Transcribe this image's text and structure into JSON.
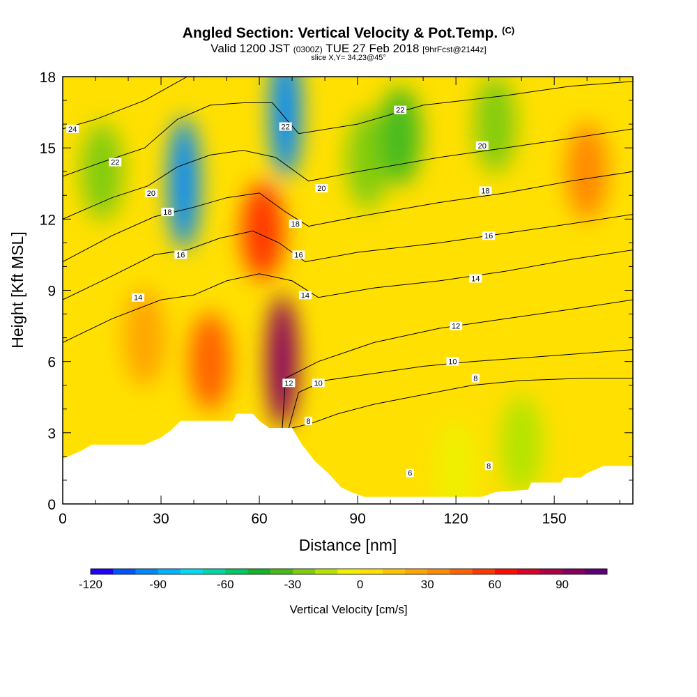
{
  "title": {
    "main": "Angled Section: Vertical Velocity & Pot.Temp.",
    "unit": "(C)",
    "valid_prefix": "Valid 1200 JST",
    "valid_utc": "(0300Z)",
    "valid_date": "TUE 27 Feb 2018",
    "forecast": "[9hrFcst@2144z]",
    "slice": "slice X,Y= 34,23@45°"
  },
  "chart_data": {
    "type": "heatmap",
    "xlabel": "Distance [nm]",
    "ylabel": "Height [Kft MSL]",
    "xlim": [
      0,
      174
    ],
    "ylim": [
      0,
      18
    ],
    "x_ticks": [
      0,
      30,
      60,
      90,
      120,
      150
    ],
    "y_ticks": [
      0,
      3,
      6,
      9,
      12,
      15,
      18
    ],
    "colorbar": {
      "label": "Vertical Velocity [cm/s]",
      "ticks": [
        -120,
        -90,
        -60,
        -30,
        0,
        30,
        60,
        90
      ],
      "range": [
        -120,
        110
      ],
      "colors": [
        "#1e00ff",
        "#0055ff",
        "#0088ff",
        "#00b4ff",
        "#00dcf0",
        "#00d8a8",
        "#00c864",
        "#16b228",
        "#46bb1a",
        "#82cc10",
        "#b4e400",
        "#f0f000",
        "#ffe000",
        "#ffc400",
        "#ffa600",
        "#ff8a00",
        "#ff6400",
        "#ff3800",
        "#ff0c00",
        "#dc0028",
        "#b00046",
        "#88005e",
        "#600078"
      ]
    },
    "terrain_kft": [
      [
        0,
        1.9
      ],
      [
        5,
        2.2
      ],
      [
        9,
        2.5
      ],
      [
        14,
        2.5
      ],
      [
        25,
        2.5
      ],
      [
        30,
        2.8
      ],
      [
        33,
        3.1
      ],
      [
        36,
        3.5
      ],
      [
        40,
        3.5
      ],
      [
        47,
        3.5
      ],
      [
        52,
        3.5
      ],
      [
        53,
        3.8
      ],
      [
        58,
        3.8
      ],
      [
        60,
        3.5
      ],
      [
        63,
        3.2
      ],
      [
        70,
        3.2
      ],
      [
        73,
        2.5
      ],
      [
        77,
        1.8
      ],
      [
        81,
        1.3
      ],
      [
        85,
        0.7
      ],
      [
        88,
        0.5
      ],
      [
        92,
        0.3
      ],
      [
        128,
        0.3
      ],
      [
        132,
        0.5
      ],
      [
        142,
        0.6
      ],
      [
        143,
        0.9
      ],
      [
        152,
        0.9
      ],
      [
        153,
        1.1
      ],
      [
        158,
        1.1
      ],
      [
        160,
        1.3
      ],
      [
        165,
        1.6
      ],
      [
        174,
        1.6
      ]
    ],
    "velocity_features": [
      {
        "x": 37,
        "z": 13.5,
        "value": -100
      },
      {
        "x": 68,
        "z": 16.5,
        "value": -100
      },
      {
        "x": 61,
        "z": 11.5,
        "value": 55
      },
      {
        "x": 67,
        "z": 6,
        "value": 90
      },
      {
        "x": 45,
        "z": 6,
        "value": 45
      },
      {
        "x": 12,
        "z": 14,
        "value": -30
      },
      {
        "x": 93,
        "z": 14.5,
        "value": -30
      },
      {
        "x": 103,
        "z": 15.5,
        "value": -35
      },
      {
        "x": 132,
        "z": 16,
        "value": -30
      },
      {
        "x": 160,
        "z": 14,
        "value": 30
      },
      {
        "x": 25,
        "z": 7,
        "value": 20
      },
      {
        "x": 120,
        "z": 1.5,
        "value": -5
      },
      {
        "x": 140,
        "z": 2.5,
        "value": -15
      }
    ],
    "theta_contour_labels": [
      {
        "text": "24",
        "x": 3,
        "z": 15.8
      },
      {
        "text": "22",
        "x": 16,
        "z": 14.4
      },
      {
        "text": "20",
        "x": 27,
        "z": 13.1
      },
      {
        "text": "18",
        "x": 32,
        "z": 12.3
      },
      {
        "text": "16",
        "x": 36,
        "z": 10.5
      },
      {
        "text": "14",
        "x": 23,
        "z": 8.7
      },
      {
        "text": "22",
        "x": 68,
        "z": 15.9
      },
      {
        "text": "20",
        "x": 79,
        "z": 13.3
      },
      {
        "text": "18",
        "x": 71,
        "z": 11.8
      },
      {
        "text": "16",
        "x": 72,
        "z": 10.5
      },
      {
        "text": "14",
        "x": 74,
        "z": 8.8
      },
      {
        "text": "12",
        "x": 69,
        "z": 5.1
      },
      {
        "text": "10",
        "x": 78,
        "z": 5.1
      },
      {
        "text": "8",
        "x": 75,
        "z": 3.5
      },
      {
        "text": "6",
        "x": 106,
        "z": 1.3
      },
      {
        "text": "8",
        "x": 130,
        "z": 1.6
      },
      {
        "text": "22",
        "x": 103,
        "z": 16.6
      },
      {
        "text": "20",
        "x": 128,
        "z": 15.1
      },
      {
        "text": "18",
        "x": 129,
        "z": 13.2
      },
      {
        "text": "16",
        "x": 130,
        "z": 11.3
      },
      {
        "text": "14",
        "x": 126,
        "z": 9.5
      },
      {
        "text": "12",
        "x": 120,
        "z": 7.5
      },
      {
        "text": "10",
        "x": 119,
        "z": 6.0
      },
      {
        "text": "8",
        "x": 126,
        "z": 5.3
      }
    ],
    "theta_contours": [
      {
        "value": 8,
        "points": [
          [
            70,
            3.2
          ],
          [
            76,
            3.4
          ],
          [
            84,
            3.8
          ],
          [
            95,
            4.2
          ],
          [
            110,
            4.6
          ],
          [
            125,
            5.0
          ],
          [
            140,
            5.2
          ],
          [
            160,
            5.3
          ],
          [
            174,
            5.3
          ]
        ]
      },
      {
        "value": 10,
        "points": [
          [
            69,
            3.2
          ],
          [
            72,
            4.7
          ],
          [
            80,
            5.2
          ],
          [
            95,
            5.5
          ],
          [
            110,
            5.8
          ],
          [
            125,
            6.0
          ],
          [
            145,
            6.2
          ],
          [
            174,
            6.5
          ]
        ]
      },
      {
        "value": 12,
        "points": [
          [
            67,
            3.2
          ],
          [
            68,
            5.3
          ],
          [
            78,
            6.0
          ],
          [
            95,
            6.8
          ],
          [
            115,
            7.4
          ],
          [
            135,
            7.8
          ],
          [
            155,
            8.2
          ],
          [
            174,
            8.6
          ]
        ]
      },
      {
        "value": 14,
        "points": [
          [
            0,
            6.8
          ],
          [
            15,
            7.8
          ],
          [
            30,
            8.6
          ],
          [
            40,
            8.8
          ],
          [
            50,
            9.4
          ],
          [
            60,
            9.7
          ],
          [
            70,
            9.4
          ],
          [
            78,
            8.7
          ],
          [
            95,
            9.1
          ],
          [
            115,
            9.4
          ],
          [
            135,
            9.8
          ],
          [
            155,
            10.3
          ],
          [
            174,
            10.7
          ]
        ]
      },
      {
        "value": 16,
        "points": [
          [
            0,
            8.6
          ],
          [
            15,
            9.6
          ],
          [
            28,
            10.5
          ],
          [
            38,
            10.7
          ],
          [
            48,
            11.2
          ],
          [
            58,
            11.5
          ],
          [
            66,
            11.0
          ],
          [
            74,
            10.2
          ],
          [
            90,
            10.6
          ],
          [
            115,
            11.0
          ],
          [
            135,
            11.4
          ],
          [
            155,
            11.8
          ],
          [
            174,
            12.2
          ]
        ]
      },
      {
        "value": 18,
        "points": [
          [
            0,
            10.2
          ],
          [
            15,
            11.3
          ],
          [
            28,
            12.1
          ],
          [
            40,
            12.5
          ],
          [
            50,
            12.9
          ],
          [
            60,
            13.1
          ],
          [
            68,
            12.3
          ],
          [
            75,
            11.7
          ],
          [
            90,
            12.1
          ],
          [
            115,
            12.7
          ],
          [
            135,
            13.1
          ],
          [
            155,
            13.6
          ],
          [
            174,
            14.0
          ]
        ]
      },
      {
        "value": 20,
        "points": [
          [
            0,
            12.0
          ],
          [
            15,
            12.9
          ],
          [
            26,
            13.4
          ],
          [
            35,
            14.2
          ],
          [
            45,
            14.7
          ],
          [
            55,
            14.9
          ],
          [
            65,
            14.6
          ],
          [
            75,
            13.6
          ],
          [
            90,
            14.0
          ],
          [
            115,
            14.6
          ],
          [
            135,
            15.0
          ],
          [
            155,
            15.4
          ],
          [
            174,
            15.8
          ]
        ]
      },
      {
        "value": 22,
        "points": [
          [
            0,
            13.8
          ],
          [
            12,
            14.4
          ],
          [
            25,
            15.0
          ],
          [
            35,
            16.2
          ],
          [
            45,
            16.8
          ],
          [
            55,
            16.9
          ],
          [
            64,
            16.9
          ],
          [
            72,
            15.6
          ],
          [
            90,
            16.0
          ],
          [
            110,
            16.8
          ],
          [
            135,
            17.2
          ],
          [
            155,
            17.6
          ],
          [
            174,
            17.8
          ]
        ]
      },
      {
        "value": 24,
        "points": [
          [
            0,
            15.8
          ],
          [
            10,
            16.2
          ],
          [
            25,
            17.0
          ],
          [
            38,
            18.0
          ]
        ]
      }
    ]
  }
}
